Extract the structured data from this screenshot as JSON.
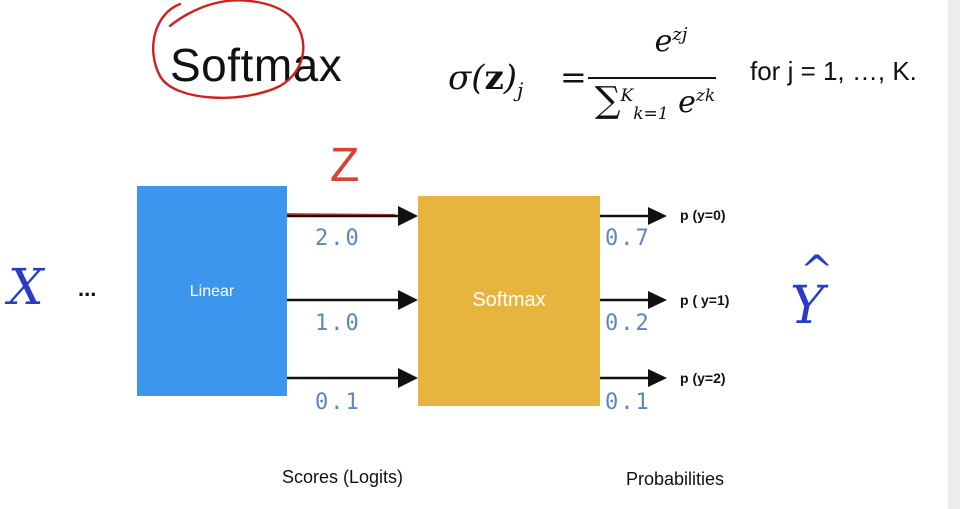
{
  "title": "Softmax",
  "formula": {
    "lhs_sigma": "σ(",
    "lhs_z": "z",
    "lhs_close": ")",
    "lhs_sub": "j",
    "equals": "=",
    "numerator_base": "e",
    "numerator_exp": "zj",
    "den_sum": "∑",
    "den_upper": "K",
    "den_lower": "k=1",
    "den_base": "e",
    "den_exp": "zk",
    "condition": "for j = 1, …, K."
  },
  "z_label": "Z",
  "input_var": "X",
  "input_dots": "...",
  "linear_label": "Linear",
  "softmax_label": "Softmax",
  "output_var": "Y",
  "output_hat": "^",
  "scores": [
    "2.0",
    "1.0",
    "0.1"
  ],
  "probs": [
    "0.7",
    "0.2",
    "0.1"
  ],
  "prob_labels": [
    "p (y=0)",
    "p ( y=1)",
    "p (y=2)"
  ],
  "captions": {
    "scores": "Scores (Logits)",
    "probabilities": "Probabilities"
  },
  "colors": {
    "linear_box": "#3d96ee",
    "softmax_box": "#e7b53e",
    "z_red": "#d94232",
    "variable_blue": "#2a3cc7",
    "number_blue": "#5b86c0",
    "annotation_circle": "#d21f1f"
  },
  "icons": {
    "annotation": "hand-drawn-circle",
    "arrows": "arrow-right"
  }
}
